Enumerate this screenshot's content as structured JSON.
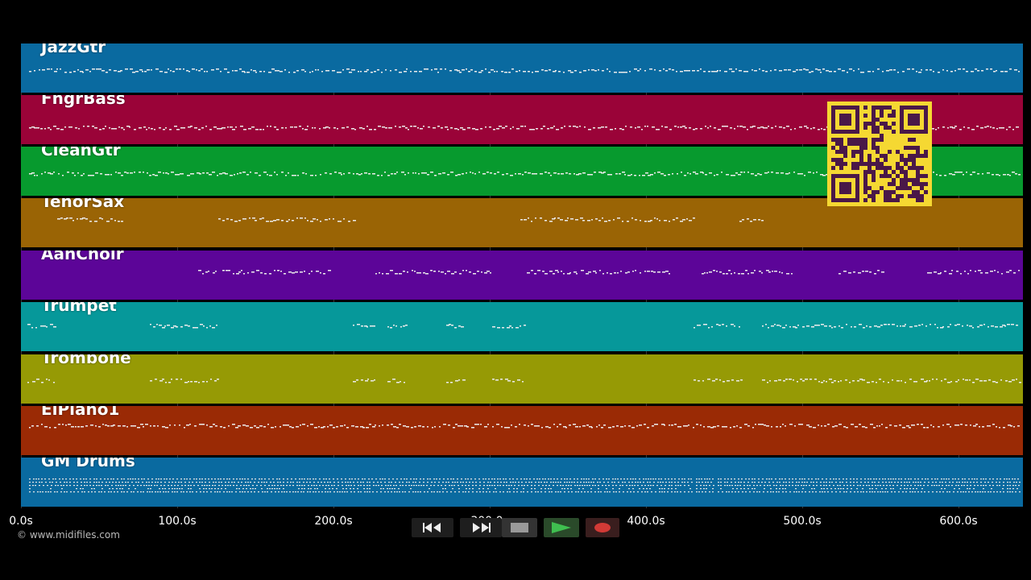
{
  "tracks": [
    {
      "name": "JazzGtr",
      "color": "#0a6aa0"
    },
    {
      "name": "FngrBass",
      "color": "#9a0338"
    },
    {
      "name": "CleanGtr",
      "color": "#079a2e"
    },
    {
      "name": "TenorSax",
      "color": "#9a6405"
    },
    {
      "name": "AahChoir",
      "color": "#5c0598"
    },
    {
      "name": "Trumpet",
      "color": "#06989a"
    },
    {
      "name": "Trombone",
      "color": "#969a05"
    },
    {
      "name": "ElPiano1",
      "color": "#9a2a05"
    },
    {
      "name": "GM Drums",
      "color": "#0a6aa0"
    }
  ],
  "timeline": {
    "ticks": [
      "0.0s",
      "100.0s",
      "200.0s",
      "300.0s",
      "400.0s",
      "500.0s",
      "600.0s"
    ],
    "tick_values": [
      0,
      100,
      200,
      300,
      400,
      500,
      600
    ],
    "max_seconds": 640
  },
  "footer": {
    "copyright": "© www.midifiles.com"
  },
  "transport": {
    "rewind_icon": "rewind-icon",
    "fast_forward_icon": "fast-forward-icon",
    "stop_icon": "stop-icon",
    "play_icon": "play-icon",
    "record_icon": "record-icon",
    "play_color": "#2f9a3a",
    "record_color": "#c9302c"
  },
  "overlay": {
    "qr_icon": "qr-code-icon",
    "qr_color": "#f5d832"
  }
}
